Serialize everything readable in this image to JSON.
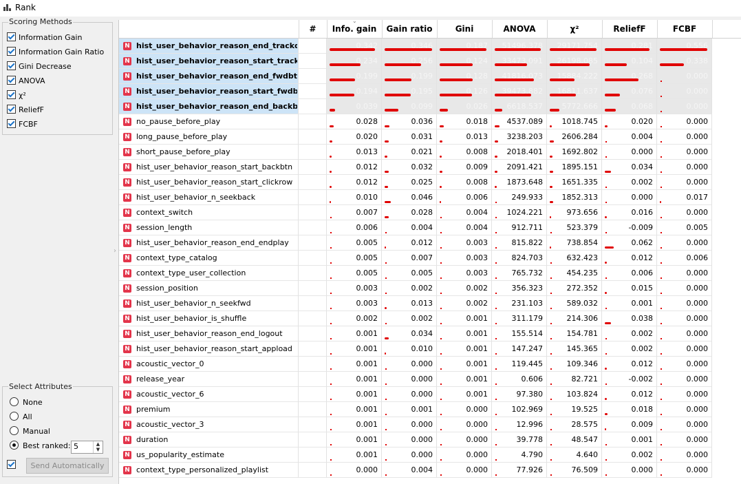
{
  "window": {
    "title": "Rank"
  },
  "scoring_methods": {
    "title": "Scoring Methods",
    "items": [
      {
        "label": "Information Gain",
        "checked": true
      },
      {
        "label": "Information Gain Ratio",
        "checked": true
      },
      {
        "label": "Gini Decrease",
        "checked": true
      },
      {
        "label": "ANOVA",
        "checked": true
      },
      {
        "label": "χ²",
        "checked": true
      },
      {
        "label": "ReliefF",
        "checked": true
      },
      {
        "label": "FCBF",
        "checked": true
      }
    ]
  },
  "select_attributes": {
    "title": "Select Attributes",
    "options": [
      "None",
      "All",
      "Manual",
      "Best ranked:"
    ],
    "selected": "Best ranked:",
    "best_ranked_value": "5",
    "send_label": "Send Automatically",
    "send_auto_checked": true
  },
  "table": {
    "headers": [
      "#",
      "Info. gain",
      "Gain ratio",
      "Gini",
      "ANOVA",
      "χ²",
      "ReliefF",
      "FCBF"
    ],
    "badge": "N",
    "rows": [
      {
        "name": "hist_user_behavior_reason_end_trackdone",
        "selected": true,
        "vals": [
          "0.342",
          "0.346",
          "0.187",
          "51496.378",
          "29171.754",
          "0.281",
          "0.556"
        ],
        "bar": [
          0.92,
          0.96,
          0.95,
          0.93,
          0.95,
          0.9,
          0.96
        ]
      },
      {
        "name": "hist_user_behavior_reason_start_trackdone",
        "selected": true,
        "vals": [
          "0.234",
          "0.256",
          "0.124",
          "33473.091",
          "26198.085",
          "0.104",
          "0.338"
        ],
        "bar": [
          0.63,
          0.74,
          0.66,
          0.65,
          0.8,
          0.45,
          0.48
        ]
      },
      {
        "name": "hist_user_behavior_reason_end_fwdbtn",
        "selected": true,
        "vals": [
          "0.199",
          "0.199",
          "0.128",
          "41816.073",
          "15884.222",
          "0.268",
          "0.000"
        ],
        "bar": [
          0.51,
          0.54,
          0.66,
          0.79,
          0.5,
          0.68,
          0.0
        ]
      },
      {
        "name": "hist_user_behavior_reason_start_fwdbtn",
        "selected": true,
        "vals": [
          "0.194",
          "0.195",
          "0.126",
          "39473.882",
          "16811.637",
          "0.076",
          "0.000"
        ],
        "bar": [
          0.5,
          0.53,
          0.65,
          0.74,
          0.53,
          0.3,
          0.0
        ]
      },
      {
        "name": "hist_user_behavior_reason_end_backbtn",
        "selected": true,
        "vals": [
          "0.039",
          "0.099",
          "0.026",
          "6618.537",
          "5772.666",
          "0.068",
          "0.000"
        ],
        "bar": [
          0.11,
          0.28,
          0.16,
          0.15,
          0.2,
          0.22,
          0.0
        ]
      },
      {
        "name": "no_pause_before_play",
        "vals": [
          "0.028",
          "0.036",
          "0.018",
          "4537.089",
          "1018.745",
          "0.020",
          "0.000"
        ],
        "bar": [
          0.08,
          0.1,
          0.09,
          0.1,
          0.04,
          0.05,
          0.0
        ]
      },
      {
        "name": "long_pause_before_play",
        "vals": [
          "0.020",
          "0.031",
          "0.013",
          "3238.203",
          "2606.284",
          "0.004",
          "0.000"
        ],
        "bar": [
          0.06,
          0.08,
          0.06,
          0.07,
          0.09,
          0.01,
          0.0
        ]
      },
      {
        "name": "short_pause_before_play",
        "vals": [
          "0.013",
          "0.021",
          "0.008",
          "2018.401",
          "1692.802",
          "0.000",
          "0.000"
        ],
        "bar": [
          0.04,
          0.06,
          0.04,
          0.05,
          0.06,
          0.0,
          0.0
        ]
      },
      {
        "name": "hist_user_behavior_reason_start_backbtn",
        "vals": [
          "0.012",
          "0.032",
          "0.009",
          "2091.421",
          "1895.151",
          "0.034",
          "0.000"
        ],
        "bar": [
          0.04,
          0.09,
          0.05,
          0.05,
          0.07,
          0.12,
          0.0
        ]
      },
      {
        "name": "hist_user_behavior_reason_start_clickrow",
        "vals": [
          "0.012",
          "0.025",
          "0.008",
          "1873.648",
          "1651.335",
          "0.002",
          "0.000"
        ],
        "bar": [
          0.04,
          0.07,
          0.04,
          0.04,
          0.06,
          0.01,
          0.0
        ]
      },
      {
        "name": "hist_user_behavior_n_seekback",
        "vals": [
          "0.010",
          "0.046",
          "0.006",
          "249.933",
          "1852.313",
          "0.000",
          "0.017"
        ],
        "bar": [
          0.03,
          0.13,
          0.03,
          0.01,
          0.07,
          0.0,
          0.03
        ]
      },
      {
        "name": "context_switch",
        "vals": [
          "0.007",
          "0.028",
          "0.004",
          "1024.221",
          "973.656",
          "0.016",
          "0.000"
        ],
        "bar": [
          0.02,
          0.08,
          0.02,
          0.02,
          0.03,
          0.04,
          0.0
        ]
      },
      {
        "name": "session_length",
        "vals": [
          "0.006",
          "0.004",
          "0.004",
          "912.711",
          "523.379",
          "-0.009",
          "0.005"
        ],
        "bar": [
          0.02,
          0.01,
          0.02,
          0.02,
          0.02,
          0.0,
          0.01
        ]
      },
      {
        "name": "hist_user_behavior_reason_end_endplay",
        "vals": [
          "0.005",
          "0.012",
          "0.003",
          "815.822",
          "738.854",
          "0.062",
          "0.000"
        ],
        "bar": [
          0.02,
          0.03,
          0.02,
          0.02,
          0.03,
          0.18,
          0.0
        ]
      },
      {
        "name": "context_type_catalog",
        "vals": [
          "0.005",
          "0.007",
          "0.003",
          "824.703",
          "632.423",
          "0.012",
          "0.006"
        ],
        "bar": [
          0.02,
          0.02,
          0.02,
          0.02,
          0.02,
          0.04,
          0.01
        ]
      },
      {
        "name": "context_type_user_collection",
        "vals": [
          "0.005",
          "0.005",
          "0.003",
          "765.732",
          "454.235",
          "0.006",
          "0.000"
        ],
        "bar": [
          0.02,
          0.02,
          0.02,
          0.02,
          0.02,
          0.02,
          0.0
        ]
      },
      {
        "name": "session_position",
        "vals": [
          "0.003",
          "0.002",
          "0.002",
          "356.323",
          "272.352",
          "0.015",
          "0.000"
        ],
        "bar": [
          0.01,
          0.01,
          0.01,
          0.01,
          0.01,
          0.04,
          0.0
        ]
      },
      {
        "name": "hist_user_behavior_n_seekfwd",
        "vals": [
          "0.003",
          "0.013",
          "0.002",
          "231.103",
          "589.032",
          "0.001",
          "0.000"
        ],
        "bar": [
          0.01,
          0.04,
          0.01,
          0.01,
          0.02,
          0.01,
          0.0
        ]
      },
      {
        "name": "hist_user_behavior_is_shuffle",
        "vals": [
          "0.002",
          "0.002",
          "0.001",
          "311.179",
          "214.306",
          "0.038",
          "0.000"
        ],
        "bar": [
          0.01,
          0.01,
          0.01,
          0.01,
          0.01,
          0.12,
          0.0
        ]
      },
      {
        "name": "hist_user_behavior_reason_end_logout",
        "vals": [
          "0.001",
          "0.034",
          "0.001",
          "155.514",
          "154.781",
          "0.002",
          "0.000"
        ],
        "bar": [
          0.01,
          0.09,
          0.01,
          0.01,
          0.01,
          0.01,
          0.0
        ]
      },
      {
        "name": "hist_user_behavior_reason_start_appload",
        "vals": [
          "0.001",
          "0.010",
          "0.001",
          "147.247",
          "145.365",
          "0.002",
          "0.000"
        ],
        "bar": [
          0.01,
          0.03,
          0.01,
          0.01,
          0.01,
          0.01,
          0.0
        ]
      },
      {
        "name": "acoustic_vector_0",
        "vals": [
          "0.001",
          "0.000",
          "0.001",
          "119.445",
          "109.346",
          "0.012",
          "0.000"
        ],
        "bar": [
          0.01,
          0.0,
          0.01,
          0.01,
          0.01,
          0.04,
          0.0
        ]
      },
      {
        "name": "release_year",
        "vals": [
          "0.001",
          "0.000",
          "0.001",
          "0.606",
          "82.721",
          "-0.002",
          "0.000"
        ],
        "bar": [
          0.01,
          0.0,
          0.01,
          0.0,
          0.01,
          0.0,
          0.0
        ]
      },
      {
        "name": "acoustic_vector_6",
        "vals": [
          "0.001",
          "0.000",
          "0.001",
          "97.380",
          "103.824",
          "0.012",
          "0.000"
        ],
        "bar": [
          0.01,
          0.0,
          0.01,
          0.01,
          0.01,
          0.04,
          0.0
        ]
      },
      {
        "name": "premium",
        "vals": [
          "0.001",
          "0.001",
          "0.000",
          "102.969",
          "19.525",
          "0.018",
          "0.000"
        ],
        "bar": [
          0.01,
          0.01,
          0.0,
          0.01,
          0.0,
          0.05,
          0.0
        ]
      },
      {
        "name": "acoustic_vector_3",
        "vals": [
          "0.001",
          "0.000",
          "0.000",
          "12.996",
          "28.575",
          "0.009",
          "0.000"
        ],
        "bar": [
          0.01,
          0.0,
          0.0,
          0.0,
          0.0,
          0.03,
          0.0
        ]
      },
      {
        "name": "duration",
        "vals": [
          "0.001",
          "0.000",
          "0.000",
          "39.778",
          "48.547",
          "0.001",
          "0.000"
        ],
        "bar": [
          0.01,
          0.0,
          0.0,
          0.0,
          0.0,
          0.01,
          0.0
        ]
      },
      {
        "name": "us_popularity_estimate",
        "vals": [
          "0.001",
          "0.000",
          "0.000",
          "4.790",
          "4.640",
          "0.002",
          "0.000"
        ],
        "bar": [
          0.01,
          0.0,
          0.0,
          0.0,
          0.0,
          0.01,
          0.0
        ]
      },
      {
        "name": "context_type_personalized_playlist",
        "vals": [
          "0.000",
          "0.004",
          "0.000",
          "77.926",
          "76.509",
          "0.000",
          "0.000"
        ],
        "bar": [
          0.0,
          0.01,
          0.0,
          0.0,
          0.0,
          0.0,
          0.0
        ]
      }
    ]
  },
  "colors": {
    "bar": "#e00000",
    "badge": "#e3354b",
    "selection": "#cde4f7"
  }
}
